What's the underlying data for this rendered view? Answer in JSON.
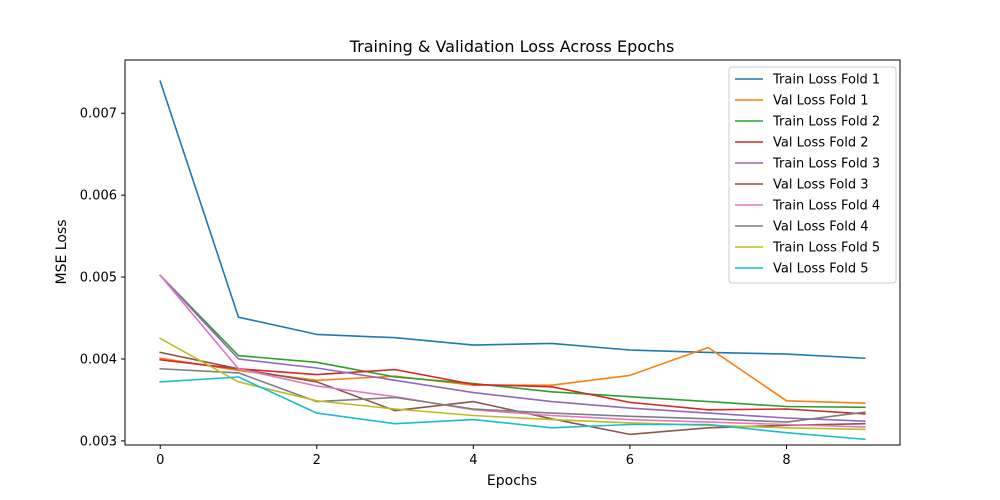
{
  "chart_data": {
    "type": "line",
    "title": "Training & Validation Loss Across Epochs",
    "xlabel": "Epochs",
    "ylabel": "MSE Loss",
    "xlim": [
      -0.45,
      9.45
    ],
    "ylim": [
      0.00295,
      0.00765
    ],
    "xticks": [
      0,
      2,
      4,
      6,
      8
    ],
    "yticks": [
      0.003,
      0.004,
      0.005,
      0.006,
      0.007
    ],
    "ytick_labels": [
      "0.003",
      "0.004",
      "0.005",
      "0.006",
      "0.007"
    ],
    "legend_position": "top-right",
    "grid": false,
    "x": [
      0,
      1,
      2,
      3,
      4,
      5,
      6,
      7,
      8,
      9
    ],
    "series": [
      {
        "name": "Train Loss Fold 1",
        "color": "#1f77b4",
        "values": [
          0.00739,
          0.00451,
          0.0043,
          0.00426,
          0.00417,
          0.00419,
          0.00411,
          0.00408,
          0.00406,
          0.00401
        ]
      },
      {
        "name": "Val Loss Fold 1",
        "color": "#ff7f0e",
        "values": [
          0.00401,
          0.00386,
          0.00374,
          0.00379,
          0.00368,
          0.00368,
          0.0038,
          0.00414,
          0.00349,
          0.00346
        ]
      },
      {
        "name": "Train Loss Fold 2",
        "color": "#2ca02c",
        "values": [
          0.00502,
          0.00404,
          0.00396,
          0.00378,
          0.0037,
          0.0036,
          0.00354,
          0.00348,
          0.00342,
          0.00341
        ]
      },
      {
        "name": "Val Loss Fold 2",
        "color": "#d62728",
        "values": [
          0.00399,
          0.00388,
          0.00381,
          0.00387,
          0.00369,
          0.00366,
          0.00347,
          0.00338,
          0.00339,
          0.00333
        ]
      },
      {
        "name": "Train Loss Fold 3",
        "color": "#9467bd",
        "values": [
          0.00502,
          0.004,
          0.00389,
          0.00374,
          0.00359,
          0.00348,
          0.0034,
          0.00334,
          0.00328,
          0.00324
        ]
      },
      {
        "name": "Val Loss Fold 3",
        "color": "#8c564b",
        "values": [
          0.00408,
          0.00388,
          0.00372,
          0.00337,
          0.00348,
          0.00327,
          0.00308,
          0.00316,
          0.00319,
          0.00321
        ]
      },
      {
        "name": "Train Loss Fold 4",
        "color": "#e377c2",
        "values": [
          0.00502,
          0.00388,
          0.00367,
          0.00354,
          0.00338,
          0.00331,
          0.00326,
          0.00323,
          0.0032,
          0.00317
        ]
      },
      {
        "name": "Val Loss Fold 4",
        "color": "#7f7f7f",
        "values": [
          0.00388,
          0.00383,
          0.00348,
          0.00353,
          0.00339,
          0.00334,
          0.0033,
          0.00327,
          0.00323,
          0.00335
        ]
      },
      {
        "name": "Train Loss Fold 5",
        "color": "#bcbd22",
        "values": [
          0.00425,
          0.00372,
          0.00349,
          0.00339,
          0.00331,
          0.00326,
          0.00322,
          0.00319,
          0.00316,
          0.00314
        ]
      },
      {
        "name": "Val Loss Fold 5",
        "color": "#17becf",
        "values": [
          0.00372,
          0.00378,
          0.00334,
          0.00321,
          0.00326,
          0.00316,
          0.0032,
          0.0032,
          0.0031,
          0.00302
        ]
      }
    ]
  }
}
